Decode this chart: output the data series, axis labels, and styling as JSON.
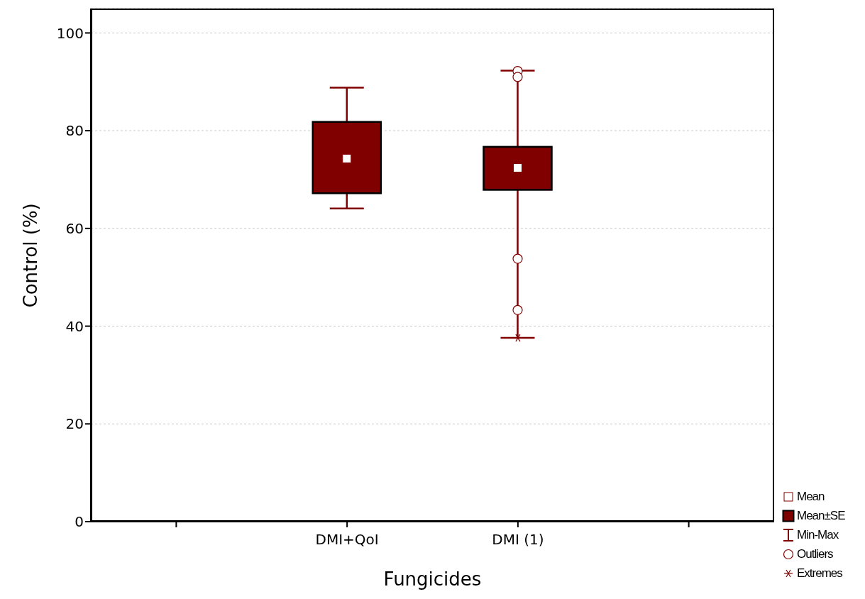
{
  "chart_data": {
    "type": "box",
    "xlabel": "Fungicides",
    "ylabel": "Control (%)",
    "categories": [
      null,
      "DMI+QoI",
      "DMI (1)",
      null
    ],
    "ylim": [
      0,
      105
    ],
    "yticks": [
      0,
      20,
      40,
      60,
      80,
      100
    ],
    "grid": "y",
    "annotations": [
      "Mean",
      "Mean±SE",
      "Min-Max",
      "Outliers",
      "Extremes"
    ],
    "series": [
      {
        "type": "box",
        "color": "#800000",
        "boxes": [
          null,
          {
            "low": 64.1,
            "q1": 67.2,
            "median": 74.3,
            "q3": 81.8,
            "high": 88.8
          },
          {
            "low": 37.6,
            "q1": 67.9,
            "median": 72.4,
            "q3": 76.7,
            "high": 92.3,
            "outliers": [
              92.2,
              91.0,
              53.8,
              43.3
            ]
          },
          null
        ]
      },
      {
        "type": "scatter",
        "marker": "cross",
        "color": "#800000",
        "x": [
          "DMI (1)"
        ],
        "values": [
          37.6
        ]
      }
    ]
  }
}
